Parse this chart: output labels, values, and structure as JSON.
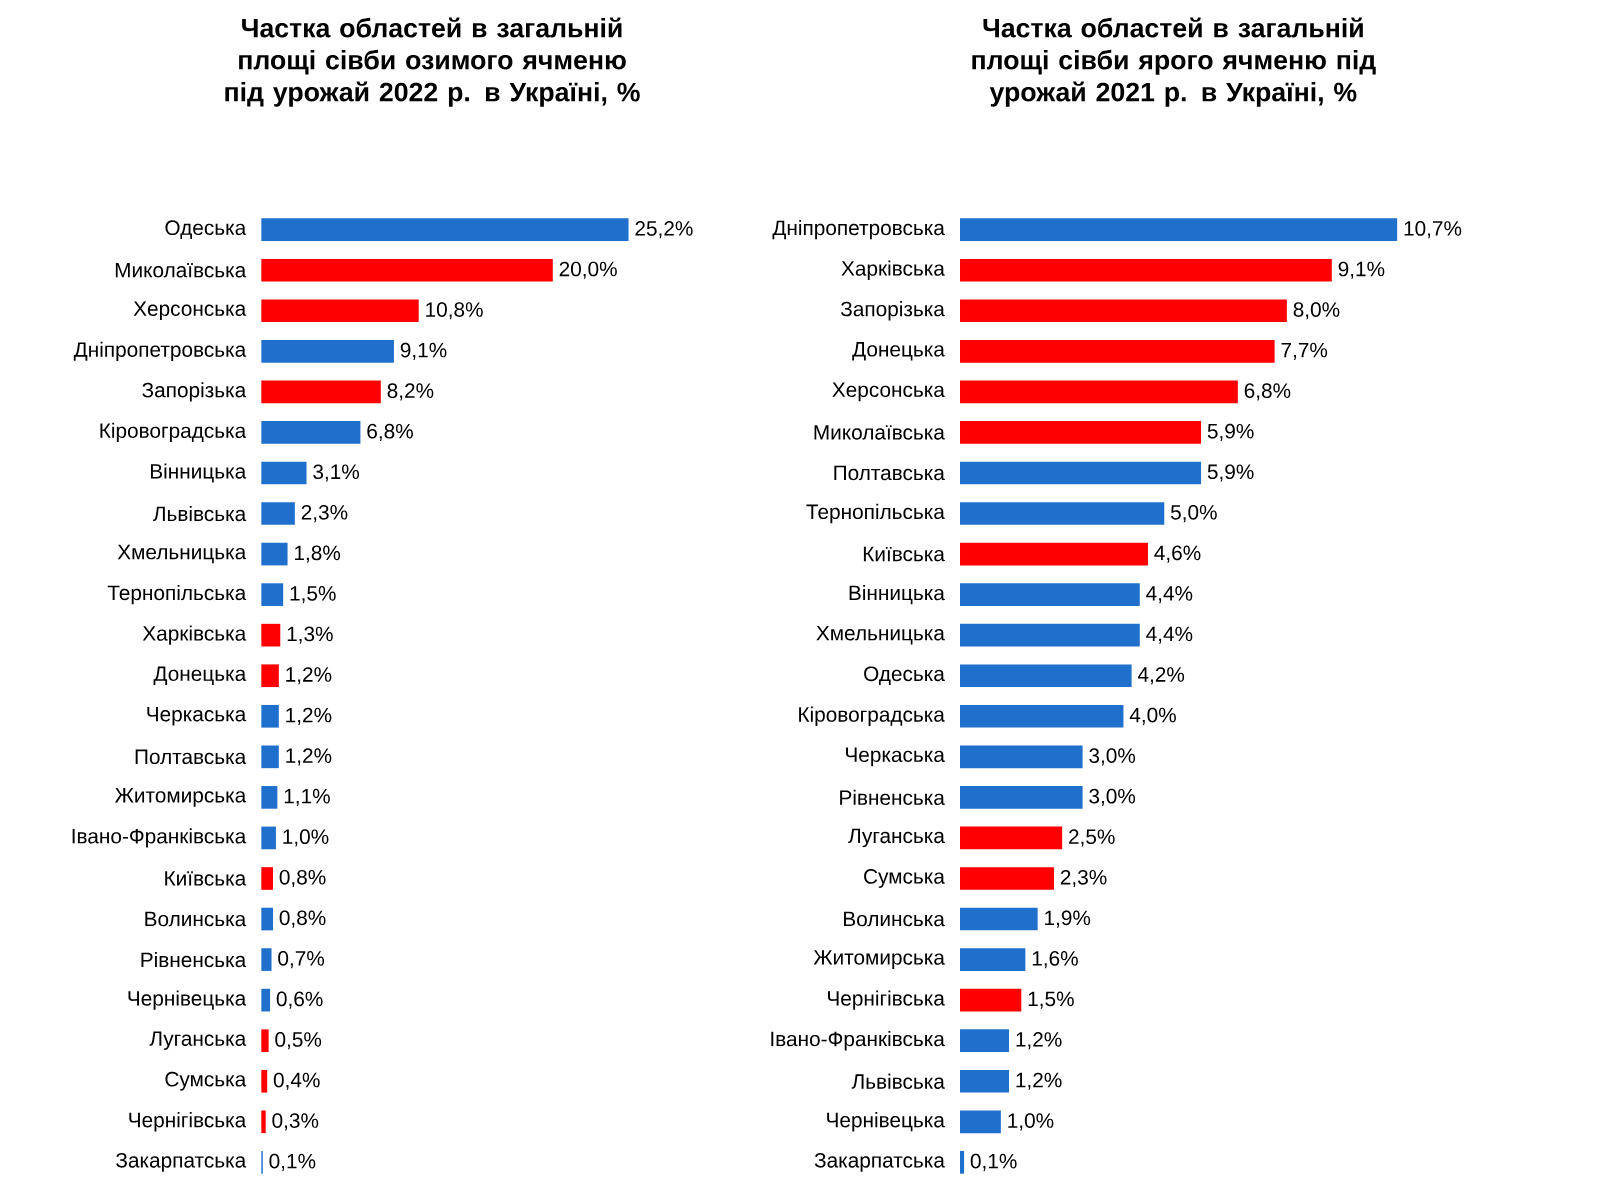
{
  "chart_data": [
    {
      "type": "bar",
      "orientation": "horizontal",
      "title": "Частка областей в загальній площі сівби озимого ячменю під урожай 2022 р. в Україні, %",
      "categories": [
        "Одеська",
        "Миколаївська",
        "Херсонська",
        "Дніпропетровська",
        "Запорізька",
        "Кіровоградська",
        "Вінницька",
        "Львівська",
        "Хмельницька",
        "Тернопільська",
        "Харківська",
        "Донецька",
        "Черкаська",
        "Полтавська",
        "Житомирська",
        "Івано-Франківська",
        "Київська",
        "Волинська",
        "Рівненська",
        "Чернівецька",
        "Луганська",
        "Сумська",
        "Чернігівська",
        "Закарпатська"
      ],
      "values": [
        25.2,
        20.0,
        10.8,
        9.1,
        8.2,
        6.8,
        3.1,
        2.3,
        1.8,
        1.5,
        1.3,
        1.2,
        1.2,
        1.2,
        1.1,
        1.0,
        0.8,
        0.8,
        0.7,
        0.6,
        0.5,
        0.4,
        0.3,
        0.1
      ],
      "value_labels": [
        "25,2%",
        "20,0%",
        "10,8%",
        "9,1%",
        "8,2%",
        "6,8%",
        "3,1%",
        "2,3%",
        "1,8%",
        "1,5%",
        "1,3%",
        "1,2%",
        "1,2%",
        "1,2%",
        "1,1%",
        "1,0%",
        "0,8%",
        "0,8%",
        "0,7%",
        "0,6%",
        "0,5%",
        "0,4%",
        "0,3%",
        "0,1%"
      ],
      "colors": [
        "#1f6fcc",
        "#ff0000",
        "#ff0000",
        "#1f6fcc",
        "#ff0000",
        "#1f6fcc",
        "#1f6fcc",
        "#1f6fcc",
        "#1f6fcc",
        "#1f6fcc",
        "#ff0000",
        "#ff0000",
        "#1f6fcc",
        "#1f6fcc",
        "#1f6fcc",
        "#1f6fcc",
        "#ff0000",
        "#1f6fcc",
        "#1f6fcc",
        "#1f6fcc",
        "#ff0000",
        "#ff0000",
        "#ff0000",
        "#1f6fcc"
      ]
    },
    {
      "type": "bar",
      "orientation": "horizontal",
      "title": "Частка областей в загальній площі сівби ярого ячменю під урожай 2021 р. в Україні, %",
      "categories": [
        "Дніпропетровська",
        "Харківська",
        "Запорізька",
        "Донецька",
        "Херсонська",
        "Миколаївська",
        "Полтавська",
        "Тернопільська",
        "Київська",
        "Вінницька",
        "Хмельницька",
        "Одеська",
        "Кіровоградська",
        "Черкаська",
        "Рівненська",
        "Луганська",
        "Сумська",
        "Волинська",
        "Житомирська",
        "Чернігівська",
        "Івано-Франківська",
        "Львівська",
        "Чернівецька",
        "Закарпатська"
      ],
      "values": [
        10.7,
        9.1,
        8.0,
        7.7,
        6.8,
        5.9,
        5.9,
        5.0,
        4.6,
        4.4,
        4.4,
        4.2,
        4.0,
        3.0,
        3.0,
        2.5,
        2.3,
        1.9,
        1.6,
        1.5,
        1.2,
        1.2,
        1.0,
        0.1
      ],
      "value_labels": [
        "10,7%",
        "9,1%",
        "8,0%",
        "7,7%",
        "6,8%",
        "5,9%",
        "5,9%",
        "5,0%",
        "4,6%",
        "4,4%",
        "4,4%",
        "4,2%",
        "4,0%",
        "3,0%",
        "3,0%",
        "2,5%",
        "2,3%",
        "1,9%",
        "1,6%",
        "1,5%",
        "1,2%",
        "1,2%",
        "1,0%",
        "0,1%"
      ],
      "colors": [
        "#1f6fcc",
        "#ff0000",
        "#ff0000",
        "#ff0000",
        "#ff0000",
        "#ff0000",
        "#1f6fcc",
        "#1f6fcc",
        "#ff0000",
        "#1f6fcc",
        "#1f6fcc",
        "#1f6fcc",
        "#1f6fcc",
        "#1f6fcc",
        "#1f6fcc",
        "#ff0000",
        "#ff0000",
        "#1f6fcc",
        "#1f6fcc",
        "#ff0000",
        "#1f6fcc",
        "#1f6fcc",
        "#1f6fcc",
        "#1f6fcc"
      ]
    }
  ]
}
